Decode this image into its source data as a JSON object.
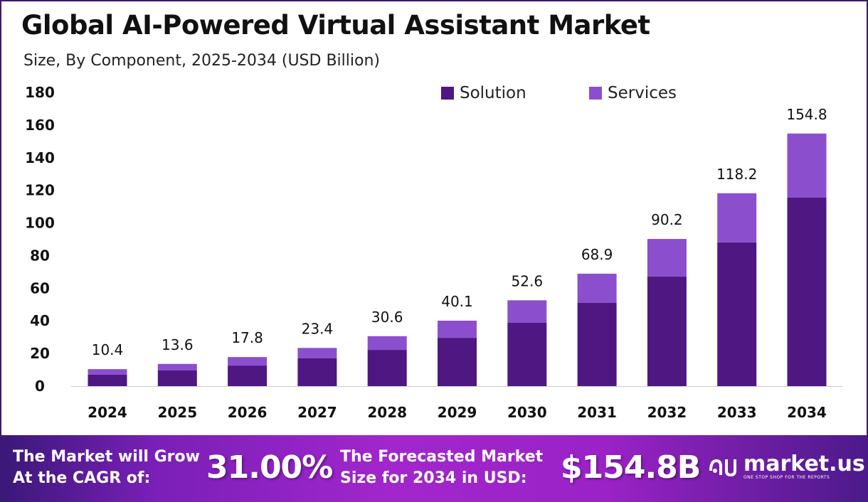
{
  "title": "Global AI-Powered Virtual Assistant Market",
  "subtitle": "Size, By Component, 2025-2034 (USD Billion)",
  "chart_data": {
    "type": "bar",
    "stacked": true,
    "categories": [
      "2024",
      "2025",
      "2026",
      "2027",
      "2028",
      "2029",
      "2030",
      "2031",
      "2032",
      "2033",
      "2034"
    ],
    "series": [
      {
        "name": "Solution",
        "color": "#4e1782",
        "values": [
          7.0,
          9.6,
          12.6,
          17.0,
          22.2,
          29.6,
          38.8,
          51.0,
          67.1,
          88.1,
          115.5
        ]
      },
      {
        "name": "Services",
        "color": "#8b4fce",
        "values": [
          3.4,
          4.0,
          5.2,
          6.4,
          8.4,
          10.5,
          13.8,
          17.9,
          23.1,
          30.1,
          39.3
        ]
      }
    ],
    "totals": [
      "10.4",
      "13.6",
      "17.8",
      "23.4",
      "30.6",
      "40.1",
      "52.6",
      "68.9",
      "90.2",
      "118.2",
      "154.8"
    ],
    "ylim": [
      0,
      180
    ],
    "yticks": [
      "0",
      "20",
      "40",
      "60",
      "80",
      "100",
      "120",
      "140",
      "160",
      "180"
    ],
    "grid": false,
    "legend": "top-right"
  },
  "footer": {
    "cagr_label_1": "The Market will Grow",
    "cagr_label_2": "At the CAGR of:",
    "cagr_value": "31.00%",
    "forecast_label_1": "The Forecasted Market",
    "forecast_label_2": "Size for 2034 in USD:",
    "forecast_value": "$154.8B",
    "logo_name": "market.us",
    "logo_tagline": "ONE STOP SHOP FOR THE REPORTS"
  }
}
